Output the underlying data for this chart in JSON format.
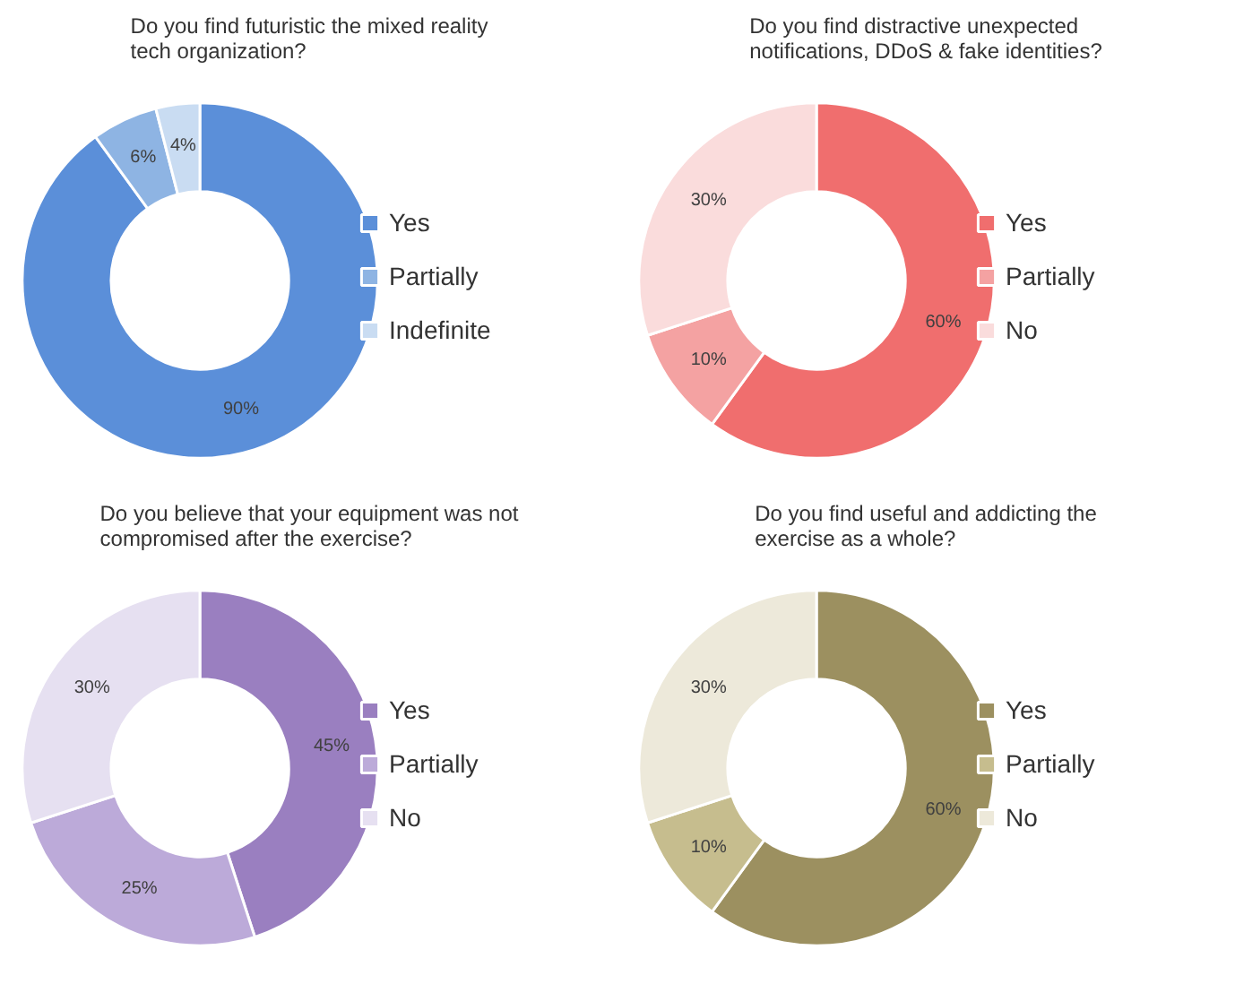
{
  "chart_data": [
    {
      "type": "donut",
      "title": "Do you find futuristic the mixed reality tech organization?",
      "categories": [
        "Yes",
        "Partially",
        "Indefinite"
      ],
      "values": [
        90,
        6,
        4
      ],
      "value_labels": [
        "90%",
        "6%",
        "4%"
      ],
      "colors": [
        "#5b8fd9",
        "#8eb4e3",
        "#c9dcf2"
      ],
      "legend": "right"
    },
    {
      "type": "donut",
      "title": "Do you find distractive unexpected notifications, DDoS & fake identities?",
      "categories": [
        "Yes",
        "Partially",
        "No"
      ],
      "values": [
        60,
        10,
        30
      ],
      "value_labels": [
        "60%",
        "10%",
        "30%"
      ],
      "colors": [
        "#f06e6e",
        "#f4a2a2",
        "#fadcdc"
      ],
      "legend": "right"
    },
    {
      "type": "donut",
      "title": "Do you believe that your equipment was not compromised after the exercise?",
      "categories": [
        "Yes",
        "Partially",
        "No"
      ],
      "values": [
        45,
        25,
        30
      ],
      "value_labels": [
        "45%",
        "25%",
        "30%"
      ],
      "colors": [
        "#9a7fc0",
        "#bcaad9",
        "#e6e0f1"
      ],
      "legend": "right"
    },
    {
      "type": "donut",
      "title": "Do you find useful and addicting the exercise as a whole?",
      "categories": [
        "Yes",
        "Partially",
        "No"
      ],
      "values": [
        60,
        10,
        30
      ],
      "value_labels": [
        "60%",
        "10%",
        "30%"
      ],
      "colors": [
        "#9c9060",
        "#c6bd8e",
        "#ede9da"
      ],
      "legend": "right"
    }
  ]
}
